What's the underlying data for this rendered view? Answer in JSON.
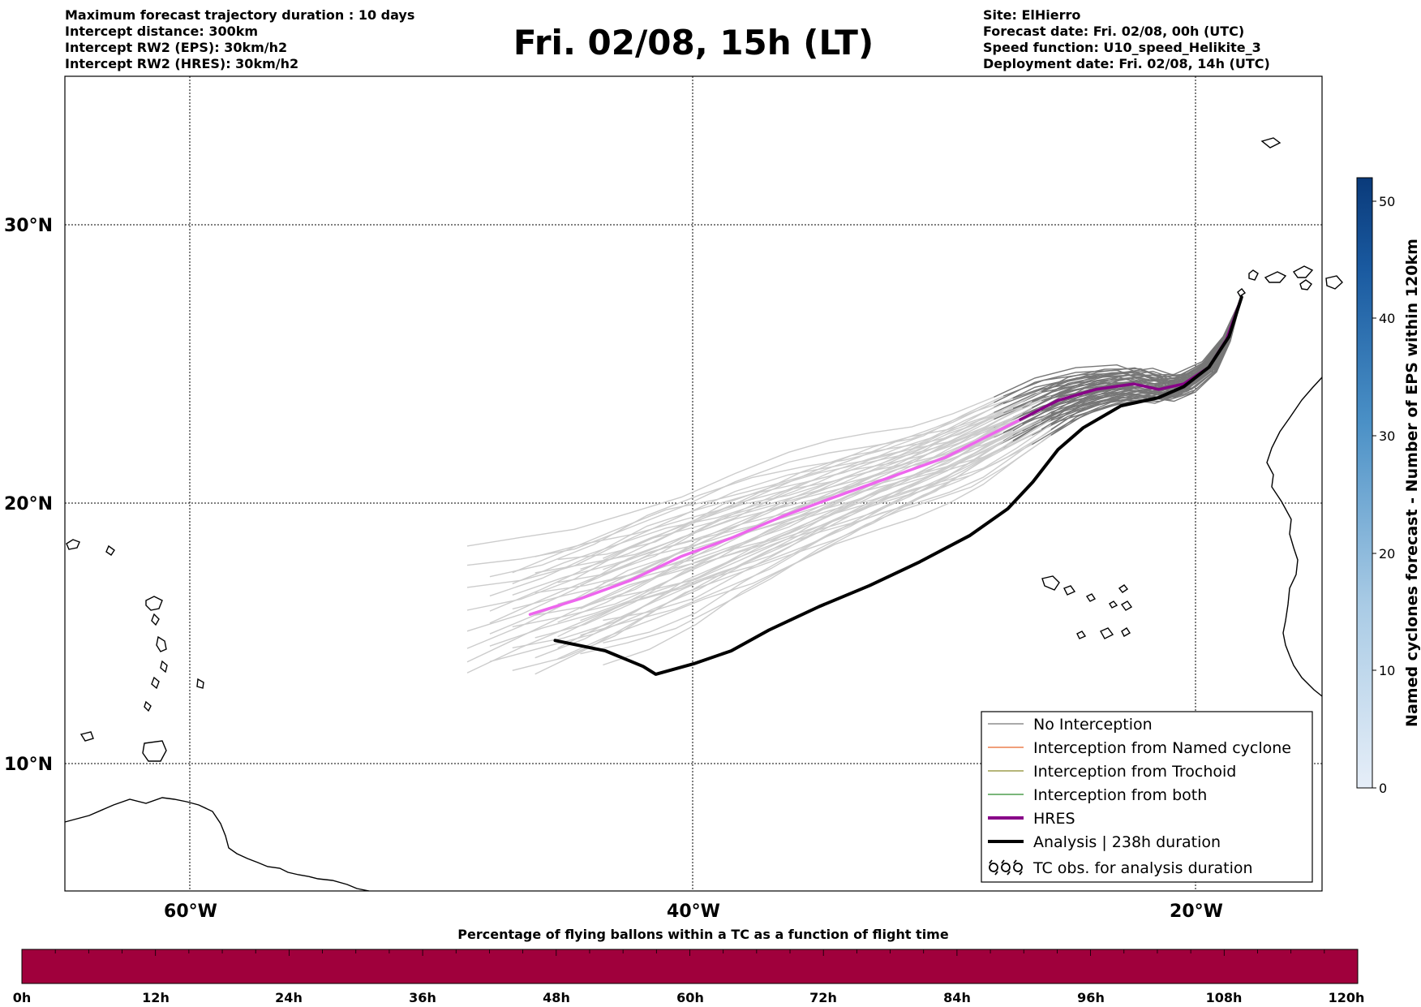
{
  "header": {
    "left_lines": [
      "Maximum forecast trajectory duration : 10 days",
      "Intercept distance: 300km",
      "Intercept RW2 (EPS):  30km/h2",
      "Intercept RW2 (HRES): 30km/h2"
    ],
    "title": "Fri. 02/08, 15h (LT)",
    "right_lines": [
      "Site: ElHierro",
      "Forecast date: Fri. 02/08, 00h (UTC)",
      "Speed function: U10_speed_Helikite_3",
      "Deployment date: Fri. 02/08, 14h (UTC)"
    ]
  },
  "map": {
    "lat_labels": [
      "30°N",
      "20°N",
      "10°N"
    ],
    "lon_labels": [
      "60°W",
      "40°W",
      "20°W"
    ],
    "extent": {
      "lon_min": -65,
      "lon_max": -15,
      "lat_min": 5,
      "lat_max": 35
    },
    "hres_color": "#ee66ee",
    "hres_late_color": "#880088",
    "analysis_color": "#000000",
    "ensemble_early_color": "#cccccc",
    "ensemble_late_color": "#777777"
  },
  "legend": {
    "items": [
      {
        "label": "No Interception",
        "color": "#777777",
        "style": "thin"
      },
      {
        "label": "Interception from Named cyclone",
        "color": "#e8662a",
        "style": "thin"
      },
      {
        "label": "Interception from Trochoid",
        "color": "#8a8a2a",
        "style": "thin"
      },
      {
        "label": "Interception from both",
        "color": "#2a8a2a",
        "style": "thin"
      },
      {
        "label": "HRES",
        "color": "#880088",
        "style": "thick"
      },
      {
        "label": "Analysis | 238h duration",
        "color": "#000000",
        "style": "thick"
      },
      {
        "label": "TC obs. for analysis duration",
        "color": "#000000",
        "style": "symbol"
      }
    ]
  },
  "colorbar_right": {
    "label": "Named cyclones forecast - Number of EPS within 120km",
    "ticks": [
      "0",
      "10",
      "20",
      "30",
      "40",
      "50"
    ],
    "min": 0,
    "max": 52,
    "color_low": "#e6eef8",
    "color_high": "#0a3a7a"
  },
  "bottom_bar": {
    "title": "Percentage of flying ballons within a TC as a function of flight time",
    "ticks": [
      "0h",
      "12h",
      "24h",
      "36h",
      "48h",
      "60h",
      "72h",
      "84h",
      "96h",
      "108h",
      "120h"
    ],
    "color": "#a0003c"
  },
  "trajectories": {
    "hres": [
      [
        -46.5,
        15.8
      ],
      [
        -44.5,
        16.4
      ],
      [
        -42.5,
        17.1
      ],
      [
        -40.5,
        18.0
      ],
      [
        -38.5,
        18.7
      ],
      [
        -36.5,
        19.5
      ],
      [
        -34.5,
        20.2
      ],
      [
        -33.0,
        20.7
      ],
      [
        -31.5,
        21.2
      ],
      [
        -30.0,
        21.7
      ],
      [
        -28.5,
        22.4
      ],
      [
        -27.0,
        23.1
      ],
      [
        -25.5,
        23.8
      ],
      [
        -24.0,
        24.2
      ],
      [
        -22.5,
        24.4
      ],
      [
        -21.5,
        24.2
      ],
      [
        -20.5,
        24.4
      ],
      [
        -19.5,
        25.0
      ],
      [
        -18.8,
        26.0
      ],
      [
        -18.2,
        27.5
      ]
    ],
    "analysis": [
      [
        -45.5,
        14.8
      ],
      [
        -43.5,
        14.4
      ],
      [
        -42.0,
        13.8
      ],
      [
        -41.5,
        13.5
      ],
      [
        -40.0,
        13.9
      ],
      [
        -38.5,
        14.4
      ],
      [
        -37.0,
        15.2
      ],
      [
        -35.0,
        16.1
      ],
      [
        -33.0,
        16.9
      ],
      [
        -31.0,
        17.8
      ],
      [
        -29.0,
        18.8
      ],
      [
        -27.5,
        19.8
      ],
      [
        -26.5,
        20.8
      ],
      [
        -25.5,
        22.0
      ],
      [
        -24.5,
        22.8
      ],
      [
        -23.0,
        23.6
      ],
      [
        -21.5,
        23.9
      ],
      [
        -20.5,
        24.3
      ],
      [
        -19.5,
        25.0
      ],
      [
        -18.7,
        26.1
      ],
      [
        -18.2,
        27.5
      ]
    ]
  }
}
